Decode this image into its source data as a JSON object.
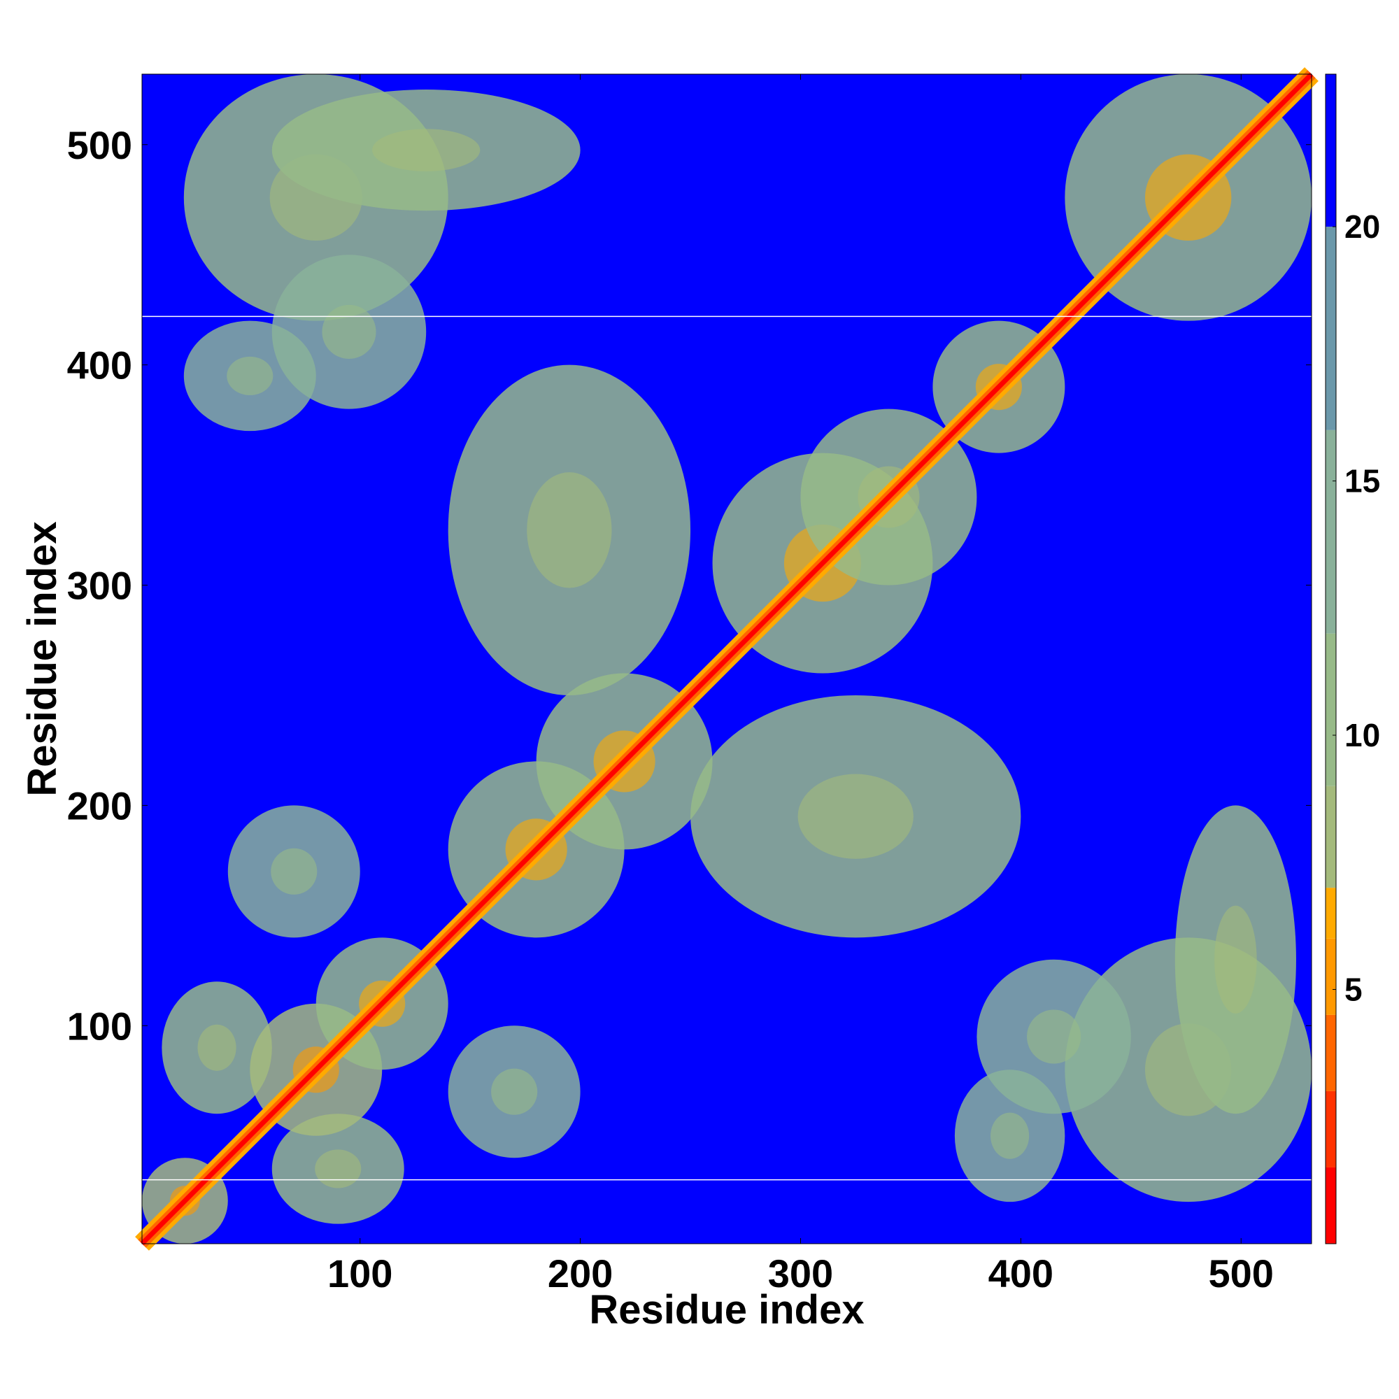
{
  "chart_data": {
    "type": "heatmap",
    "title": "",
    "xlabel": "Residue index",
    "ylabel": "Residue index",
    "xlim": [
      1,
      532
    ],
    "ylim": [
      1,
      532
    ],
    "x_ticks": [
      100,
      200,
      300,
      400,
      500
    ],
    "y_ticks": [
      100,
      200,
      300,
      400,
      500
    ],
    "x_tick_labels": [
      "100",
      "200",
      "300",
      "400",
      "500"
    ],
    "y_tick_labels": [
      "100",
      "200",
      "300",
      "400",
      "500"
    ],
    "colorbar": {
      "ticks": [
        5,
        10,
        15,
        20
      ],
      "tick_labels": [
        "5",
        "10",
        "15",
        "20"
      ],
      "range": [
        0,
        23
      ],
      "color_levels": [
        {
          "max": 1.5,
          "color": "#ff0000"
        },
        {
          "max": 3.0,
          "color": "#ff3300"
        },
        {
          "max": 4.5,
          "color": "#ff6600"
        },
        {
          "max": 6.0,
          "color": "#ff9900"
        },
        {
          "max": 7.0,
          "color": "#ffaa00"
        },
        {
          "max": 9.0,
          "color": "#a4ba7c"
        },
        {
          "max": 12.0,
          "color": "#97ba88"
        },
        {
          "max": 16.0,
          "color": "#8ab19a"
        },
        {
          "max": 20.0,
          "color": "#6b98aa"
        },
        {
          "max": 23.0,
          "color": "#0000ff"
        }
      ]
    },
    "background_color": "#0000ff",
    "highlight_rows": [
      30,
      422
    ],
    "diagonal": true,
    "contact_regions": [
      {
        "x": [
          1,
          40
        ],
        "y": [
          1,
          40
        ],
        "value": 8
      },
      {
        "x": [
          10,
          60
        ],
        "y": [
          60,
          120
        ],
        "value": 11
      },
      {
        "x": [
          60,
          120
        ],
        "y": [
          10,
          60
        ],
        "value": 11
      },
      {
        "x": [
          50,
          110
        ],
        "y": [
          50,
          110
        ],
        "value": 9
      },
      {
        "x": [
          80,
          140
        ],
        "y": [
          80,
          140
        ],
        "value": 10
      },
      {
        "x": [
          40,
          100
        ],
        "y": [
          140,
          200
        ],
        "value": 14
      },
      {
        "x": [
          140,
          200
        ],
        "y": [
          40,
          100
        ],
        "value": 14
      },
      {
        "x": [
          140,
          220
        ],
        "y": [
          140,
          220
        ],
        "value": 10
      },
      {
        "x": [
          180,
          260
        ],
        "y": [
          180,
          260
        ],
        "value": 10
      },
      {
        "x": [
          260,
          360
        ],
        "y": [
          260,
          360
        ],
        "value": 10
      },
      {
        "x": [
          300,
          380
        ],
        "y": [
          300,
          380
        ],
        "value": 11
      },
      {
        "x": [
          360,
          420
        ],
        "y": [
          360,
          420
        ],
        "value": 10
      },
      {
        "x": [
          420,
          532
        ],
        "y": [
          420,
          532
        ],
        "value": 10
      },
      {
        "x": [
          20,
          140
        ],
        "y": [
          420,
          532
        ],
        "value": 12
      },
      {
        "x": [
          420,
          532
        ],
        "y": [
          20,
          140
        ],
        "value": 12
      },
      {
        "x": [
          140,
          250
        ],
        "y": [
          250,
          400
        ],
        "value": 11
      },
      {
        "x": [
          250,
          400
        ],
        "y": [
          140,
          250
        ],
        "value": 11
      },
      {
        "x": [
          20,
          80
        ],
        "y": [
          370,
          420
        ],
        "value": 13
      },
      {
        "x": [
          370,
          420
        ],
        "y": [
          20,
          80
        ],
        "value": 13
      },
      {
        "x": [
          470,
          525
        ],
        "y": [
          60,
          200
        ],
        "value": 12
      },
      {
        "x": [
          60,
          200
        ],
        "y": [
          470,
          525
        ],
        "value": 12
      },
      {
        "x": [
          380,
          450
        ],
        "y": [
          60,
          130
        ],
        "value": 13
      },
      {
        "x": [
          60,
          130
        ],
        "y": [
          380,
          450
        ],
        "value": 13
      }
    ]
  }
}
